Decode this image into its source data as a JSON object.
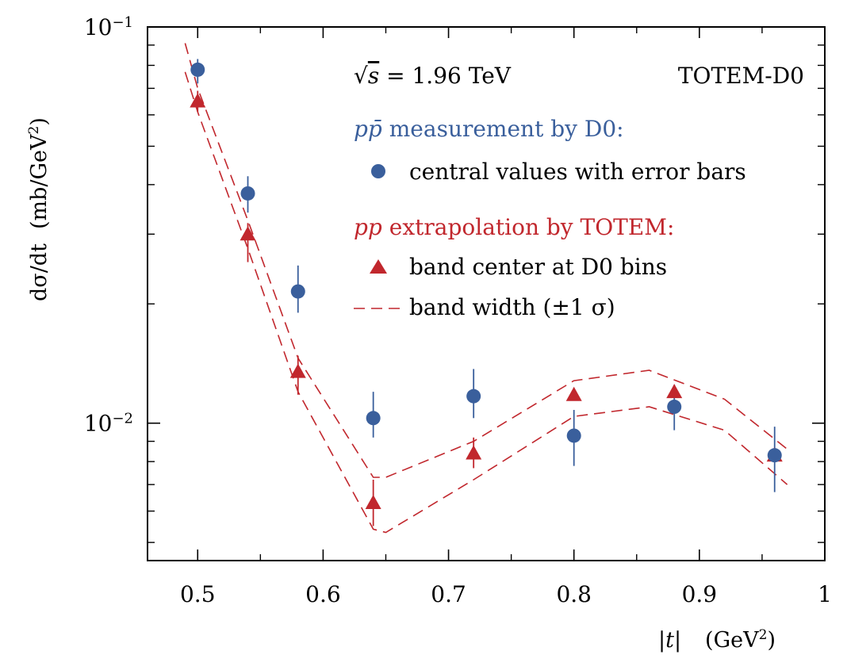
{
  "chart_data": {
    "type": "scatter",
    "scale": {
      "x": "linear",
      "y": "log"
    },
    "xlim": [
      0.46,
      1.0
    ],
    "ylim": [
      0.0045,
      0.1
    ],
    "grid": false,
    "legend_position": "top-right",
    "x_tick_labels": [
      "0.5",
      "0.6",
      "0.7",
      "0.8",
      "0.9",
      "1"
    ],
    "x_ticks": [
      0.5,
      0.6,
      0.7,
      0.8,
      0.9,
      1.0
    ],
    "x_minor_ticks": [
      0.55,
      0.65,
      0.75,
      0.85,
      0.95
    ],
    "y_major_ticks": [
      0.01,
      0.1
    ],
    "y_minor_ticks": [
      0.005,
      0.006,
      0.007,
      0.008,
      0.009,
      0.02,
      0.03,
      0.04,
      0.05,
      0.06,
      0.07,
      0.08,
      0.09
    ],
    "y_tick_labels": [
      {
        "value": 0.1,
        "base": "10",
        "exp": "−1"
      },
      {
        "value": 0.01,
        "base": "10",
        "exp": "−2"
      }
    ],
    "xlabel": {
      "main": "|t|",
      "unit_prefix": "(GeV",
      "unit_sup": "2",
      "unit_suffix": ")"
    },
    "ylabel": {
      "main": "dσ/dt",
      "unit_prefix": "(mb/GeV",
      "unit_sup": "2",
      "unit_suffix": ")"
    },
    "annotations": {
      "energy_prefix": "√",
      "energy_var": "s",
      "energy_rest": " = 1.96 TeV",
      "experiment": "TOTEM-D0"
    },
    "legend": {
      "d0_header_sym": "pp̄",
      "d0_header_text": " measurement by D0:",
      "d0_marker_label": "central values with error bars",
      "totem_header_sym": "pp",
      "totem_header_text": " extrapolation by TOTEM:",
      "totem_marker_label": "band center at D0 bins",
      "band_label": "band width (±1 σ)"
    },
    "colors": {
      "d0": "#3a5f9c",
      "totem": "#c1272d"
    },
    "series": [
      {
        "name": "central values with error bars",
        "marker": "circle",
        "x": [
          0.5,
          0.54,
          0.58,
          0.64,
          0.72,
          0.8,
          0.88,
          0.96
        ],
        "y": [
          0.078,
          0.038,
          0.0215,
          0.0103,
          0.0117,
          0.0093,
          0.011,
          0.0083
        ],
        "y_low": [
          0.072,
          0.034,
          0.019,
          0.0092,
          0.0103,
          0.0078,
          0.0096,
          0.0067
        ],
        "y_high": [
          0.083,
          0.042,
          0.025,
          0.012,
          0.0137,
          0.0108,
          0.0125,
          0.0098
        ]
      },
      {
        "name": "band center at D0 bins",
        "marker": "triangle",
        "x": [
          0.5,
          0.54,
          0.58,
          0.64,
          0.72,
          0.8,
          0.88,
          0.96
        ],
        "y": [
          0.065,
          0.03,
          0.0135,
          0.0063,
          0.0084,
          0.0118,
          0.012,
          0.0083
        ],
        "y_low": [
          0.061,
          0.0255,
          0.0118,
          0.0055,
          0.0077,
          0.0118,
          0.012,
          0.0083
        ],
        "y_high": [
          0.069,
          0.032,
          0.0148,
          0.0072,
          0.0092,
          0.0118,
          0.012,
          0.0083
        ]
      },
      {
        "name": "band width (±1 σ)",
        "style": "dashed",
        "bands": [
          {
            "x": [
              0.49,
              0.5,
              0.54,
              0.58,
              0.64,
              0.65,
              0.72,
              0.8,
              0.86,
              0.92,
              0.97
            ],
            "y": [
              0.091,
              0.07,
              0.0325,
              0.0146,
              0.0073,
              0.0073,
              0.009,
              0.0128,
              0.0136,
              0.0115,
              0.0086
            ]
          },
          {
            "x": [
              0.49,
              0.5,
              0.54,
              0.58,
              0.64,
              0.65,
              0.72,
              0.8,
              0.86,
              0.92,
              0.97
            ],
            "y": [
              0.077,
              0.061,
              0.0276,
              0.012,
              0.0054,
              0.0053,
              0.0072,
              0.0104,
              0.011,
              0.0096,
              0.007
            ]
          }
        ]
      }
    ]
  }
}
